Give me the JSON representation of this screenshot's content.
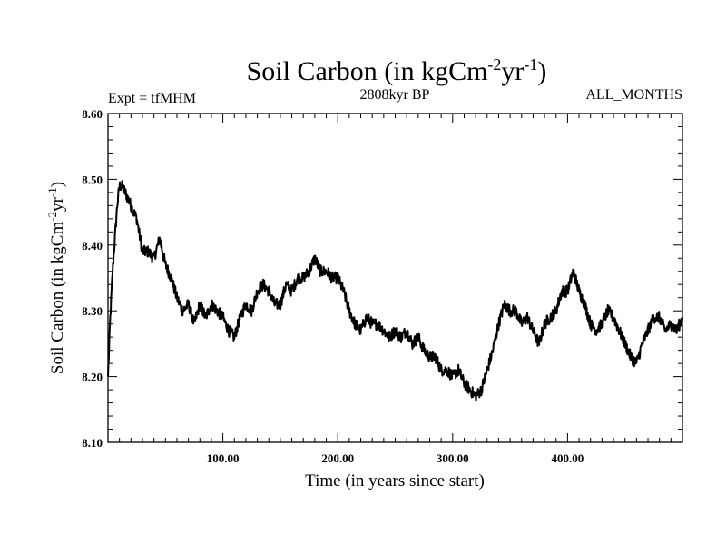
{
  "chart_data": {
    "type": "line",
    "title": "Soil Carbon (in kgCm",
    "title_sup1": "-2",
    "title_mid": "yr",
    "title_sup2": "-1",
    "title_end": ")",
    "left_label": "Expt = tfMHM",
    "center_label": "2808kyr BP",
    "right_label": "ALL_MONTHS",
    "xlabel": "Time (in years since start)",
    "ylabel_main": "Soil Carbon (in kgCm",
    "ylabel_sup1": "-2",
    "ylabel_mid": "yr",
    "ylabel_sup2": "-1",
    "ylabel_end": ")",
    "xlim": [
      0,
      500
    ],
    "ylim": [
      8.1,
      8.6
    ],
    "xticks": [
      100,
      200,
      300,
      400
    ],
    "xtick_labels": [
      "100.00",
      "200.00",
      "300.00",
      "400.00"
    ],
    "yticks": [
      8.1,
      8.2,
      8.3,
      8.4,
      8.5,
      8.6
    ],
    "ytick_labels": [
      "8.10",
      "8.20",
      "8.30",
      "8.40",
      "8.50",
      "8.60"
    ],
    "series": [
      {
        "name": "Soil Carbon",
        "x": [
          0,
          2,
          4,
          6,
          8,
          10,
          12,
          15,
          20,
          25,
          30,
          35,
          40,
          45,
          50,
          55,
          60,
          65,
          70,
          75,
          80,
          85,
          90,
          95,
          100,
          105,
          110,
          115,
          120,
          125,
          130,
          135,
          140,
          145,
          150,
          155,
          160,
          165,
          170,
          175,
          180,
          185,
          190,
          195,
          200,
          205,
          210,
          215,
          220,
          225,
          230,
          235,
          240,
          245,
          250,
          255,
          260,
          265,
          270,
          275,
          280,
          285,
          290,
          295,
          300,
          305,
          310,
          315,
          320,
          325,
          330,
          335,
          340,
          345,
          350,
          355,
          360,
          365,
          370,
          375,
          380,
          385,
          390,
          395,
          400,
          405,
          410,
          415,
          420,
          425,
          430,
          435,
          440,
          445,
          450,
          455,
          460,
          465,
          470,
          475,
          480,
          485,
          490,
          495,
          500
        ],
        "values": [
          8.2,
          8.29,
          8.36,
          8.41,
          8.46,
          8.49,
          8.49,
          8.48,
          8.46,
          8.44,
          8.39,
          8.39,
          8.38,
          8.41,
          8.37,
          8.35,
          8.32,
          8.3,
          8.31,
          8.28,
          8.31,
          8.29,
          8.31,
          8.3,
          8.29,
          8.27,
          8.26,
          8.29,
          8.31,
          8.3,
          8.33,
          8.34,
          8.33,
          8.31,
          8.31,
          8.34,
          8.33,
          8.35,
          8.35,
          8.36,
          8.38,
          8.36,
          8.36,
          8.35,
          8.35,
          8.33,
          8.3,
          8.28,
          8.27,
          8.29,
          8.28,
          8.28,
          8.27,
          8.26,
          8.27,
          8.26,
          8.27,
          8.25,
          8.26,
          8.24,
          8.23,
          8.23,
          8.21,
          8.21,
          8.2,
          8.21,
          8.19,
          8.18,
          8.17,
          8.18,
          8.21,
          8.24,
          8.28,
          8.31,
          8.3,
          8.3,
          8.28,
          8.29,
          8.27,
          8.25,
          8.28,
          8.29,
          8.3,
          8.33,
          8.33,
          8.36,
          8.33,
          8.31,
          8.28,
          8.27,
          8.28,
          8.3,
          8.29,
          8.27,
          8.25,
          8.23,
          8.22,
          8.25,
          8.27,
          8.29,
          8.29,
          8.27,
          8.28,
          8.27,
          8.29
        ]
      }
    ]
  }
}
